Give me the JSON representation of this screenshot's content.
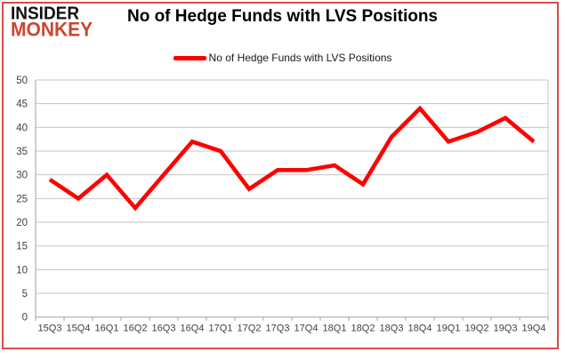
{
  "header": {
    "logo_line1": "INSIDER",
    "logo_line2": "MONKEY",
    "title": "No of Hedge Funds with LVS Positions"
  },
  "legend": {
    "label": "No of Hedge Funds with LVS Positions"
  },
  "colors": {
    "line": "#fe0000",
    "frame_border": "#dd4b4b",
    "gridline": "#c6c6c6",
    "axis": "#a0a0a0",
    "tick_text": "#3f3f3f",
    "logo_black": "#111111",
    "logo_red": "#c9472f"
  },
  "chart_data": {
    "type": "line",
    "title": "No of Hedge Funds with LVS Positions",
    "categories": [
      "15Q3",
      "15Q4",
      "16Q1",
      "16Q2",
      "16Q3",
      "16Q4",
      "17Q1",
      "17Q2",
      "17Q3",
      "17Q4",
      "18Q1",
      "18Q2",
      "18Q3",
      "18Q4",
      "19Q1",
      "19Q2",
      "19Q3",
      "19Q4"
    ],
    "series": [
      {
        "name": "No of Hedge Funds with LVS Positions",
        "values": [
          29,
          25,
          30,
          23,
          30,
          37,
          35,
          27,
          31,
          31,
          32,
          28,
          38,
          44,
          37,
          39,
          42,
          37
        ]
      }
    ],
    "yticks": [
      0,
      5,
      10,
      15,
      20,
      25,
      30,
      35,
      40,
      45,
      50
    ],
    "ylim": [
      0,
      50
    ],
    "xlabel": "",
    "ylabel": "",
    "grid": true,
    "legend_position": "top-center"
  }
}
